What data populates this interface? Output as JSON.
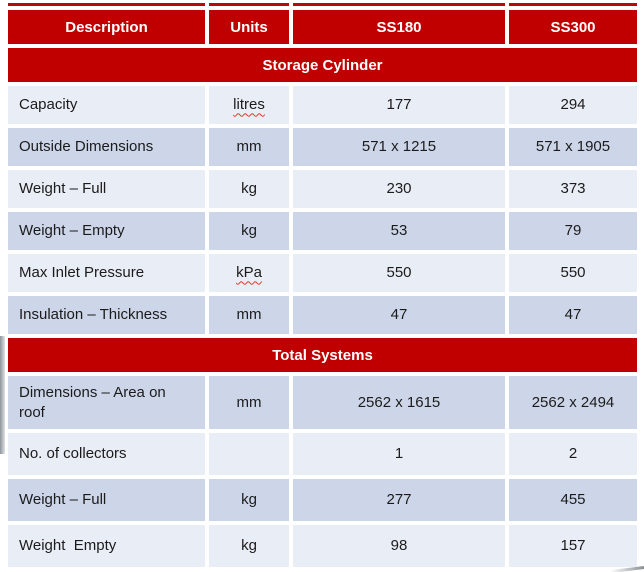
{
  "table": {
    "columns": [
      "Description",
      "Units",
      "SS180",
      "SS300"
    ],
    "sections": [
      {
        "title": "Storage Cylinder",
        "rows": [
          {
            "description": "Capacity",
            "units": "litres",
            "units_squiggle": true,
            "ss180": "177",
            "ss300": "294",
            "shade": "light"
          },
          {
            "description": "Outside Dimensions",
            "units": "mm",
            "units_squiggle": false,
            "ss180": "571 x 1215",
            "ss300": "571 x 1905",
            "shade": "dark"
          },
          {
            "description": "Weight – Full",
            "units": "kg",
            "units_squiggle": false,
            "ss180": "230",
            "ss300": "373",
            "shade": "light"
          },
          {
            "description": "Weight – Empty",
            "units": "kg",
            "units_squiggle": false,
            "ss180": "53",
            "ss300": "79",
            "shade": "dark"
          },
          {
            "description": "Max Inlet Pressure",
            "units": "kPa",
            "units_squiggle": true,
            "ss180": "550",
            "ss300": "550",
            "shade": "light"
          },
          {
            "description": "Insulation – Thickness",
            "units": "mm",
            "units_squiggle": false,
            "ss180": "47",
            "ss300": "47",
            "shade": "dark"
          }
        ]
      },
      {
        "title": "Total Systems",
        "rows": [
          {
            "description": "Dimensions – Area on roof",
            "units": "mm",
            "units_squiggle": false,
            "ss180": "2562 x 1615",
            "ss300": "2562 x 2494",
            "shade": "dark"
          },
          {
            "description": "No. of collectors",
            "units": "",
            "units_squiggle": false,
            "ss180": "1",
            "ss300": "2",
            "shade": "light"
          },
          {
            "description": "Weight – Full",
            "units": "kg",
            "units_squiggle": false,
            "ss180": "277",
            "ss300": "455",
            "shade": "dark"
          },
          {
            "description": "Weight  Empty",
            "units": "kg",
            "units_squiggle": false,
            "ss180": "98",
            "ss300": "157",
            "shade": "light"
          }
        ]
      }
    ]
  },
  "colors": {
    "header_red": "#c00000",
    "top_border_red": "#b80808",
    "row_light": "#e9edf6",
    "row_dark": "#cdd6e9",
    "header_text": "#ffffff",
    "body_text": "#1b1b1b",
    "squiggle_red": "#db3b26"
  }
}
